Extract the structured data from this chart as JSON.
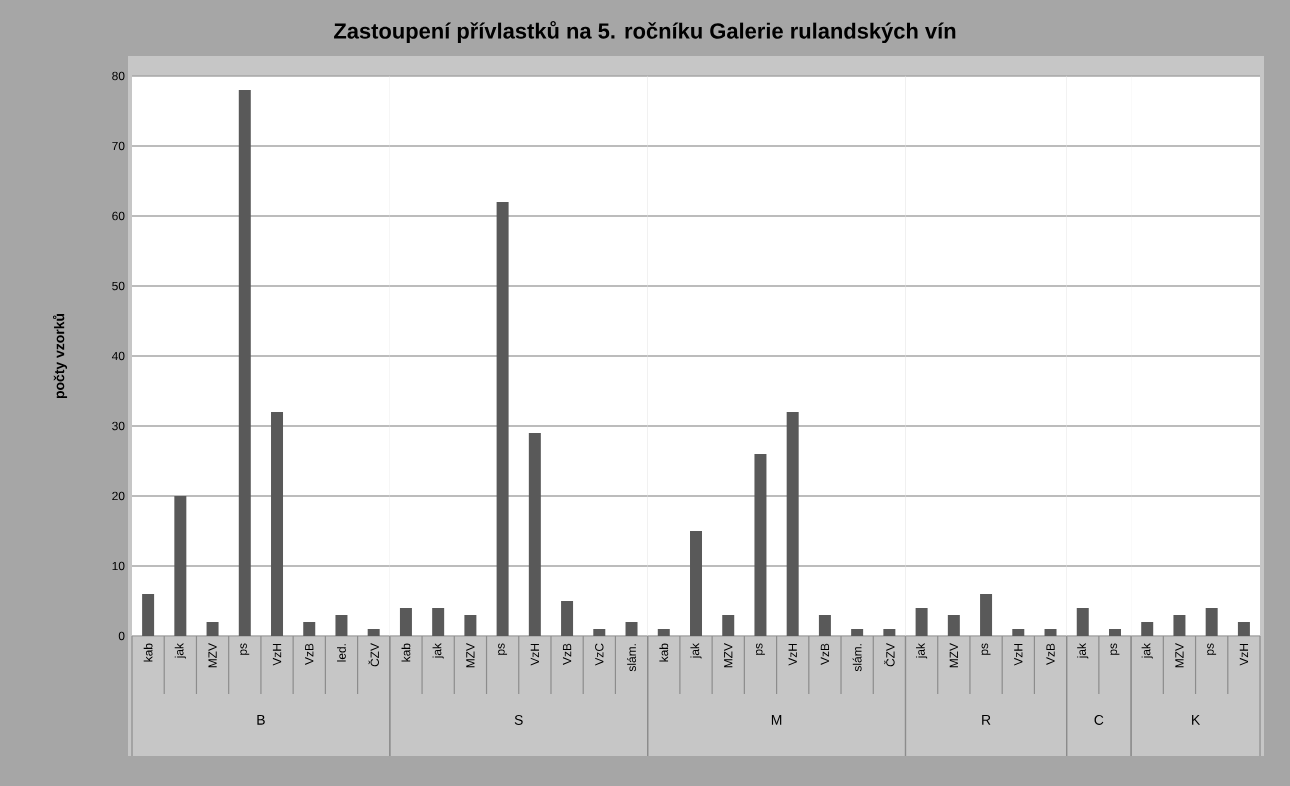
{
  "chart_data": [
    {
      "type": "bar",
      "title": "Zastoupení přívlastků na 5. ročníku Galerie rulandských vín",
      "ylabel": "počty vzorků",
      "xlabel": "B",
      "categories": [
        "kab",
        "jak",
        "MZV",
        "ps",
        "VzH",
        "VzB",
        "led.",
        "ČZV"
      ],
      "values": [
        6,
        20,
        2,
        78,
        32,
        2,
        3,
        1
      ],
      "color": "#595959",
      "ylim": [
        0,
        80
      ],
      "yticks": [
        0,
        10,
        20,
        30,
        40,
        50,
        60,
        70,
        80
      ],
      "grid": "y"
    },
    {
      "type": "bar",
      "xlabel": "S",
      "categories": [
        "kab",
        "jak",
        "MZV",
        "ps",
        "VzH",
        "VzB",
        "VzC",
        "slám."
      ],
      "values": [
        4,
        4,
        3,
        62,
        29,
        5,
        1,
        2
      ],
      "color": "#595959",
      "ylim": [
        0,
        80
      ],
      "yticks": [
        0,
        10,
        20,
        30,
        40,
        50,
        60,
        70,
        80
      ],
      "grid": "y",
      "tick_labels": "x"
    },
    {
      "type": "bar",
      "xlabel": "M",
      "categories": [
        "kab",
        "jak",
        "MZV",
        "ps",
        "VzH",
        "VzB",
        "slám.",
        "ČZV"
      ],
      "values": [
        1,
        15,
        3,
        26,
        32,
        3,
        1,
        1
      ],
      "color": "#595959",
      "ylim": [
        0,
        80
      ],
      "yticks": [
        0,
        10,
        20,
        30,
        40,
        50,
        60,
        70,
        80
      ],
      "grid": "y",
      "tick_labels": "x"
    },
    {
      "type": "bar",
      "xlabel": "R",
      "categories": [
        "jak",
        "MZV",
        "ps",
        "VzH",
        "VzB"
      ],
      "values": [
        4,
        3,
        6,
        1,
        1
      ],
      "color": "#595959",
      "ylim": [
        0,
        80
      ],
      "yticks": [
        0,
        10,
        20,
        30,
        40,
        50,
        60,
        70,
        80
      ],
      "grid": "y",
      "tick_labels": "x"
    },
    {
      "type": "bar",
      "xlabel": "C",
      "categories": [
        "jak",
        "ps"
      ],
      "values": [
        4,
        1
      ],
      "color": "#595959",
      "ylim": [
        0,
        80
      ],
      "yticks": [
        0,
        10,
        20,
        30,
        40,
        50,
        60,
        70,
        80
      ],
      "grid": "y",
      "tick_labels": "x"
    },
    {
      "type": "bar",
      "xlabel": "K",
      "categories": [
        "jak",
        "MZV",
        "ps",
        "VzH"
      ],
      "values": [
        2,
        3,
        4,
        2
      ],
      "color": "#595959",
      "ylim": [
        0,
        80
      ],
      "yticks": [
        0,
        10,
        20,
        30,
        40,
        50,
        60,
        70,
        80
      ],
      "grid": "y",
      "tick_labels": "x"
    }
  ]
}
